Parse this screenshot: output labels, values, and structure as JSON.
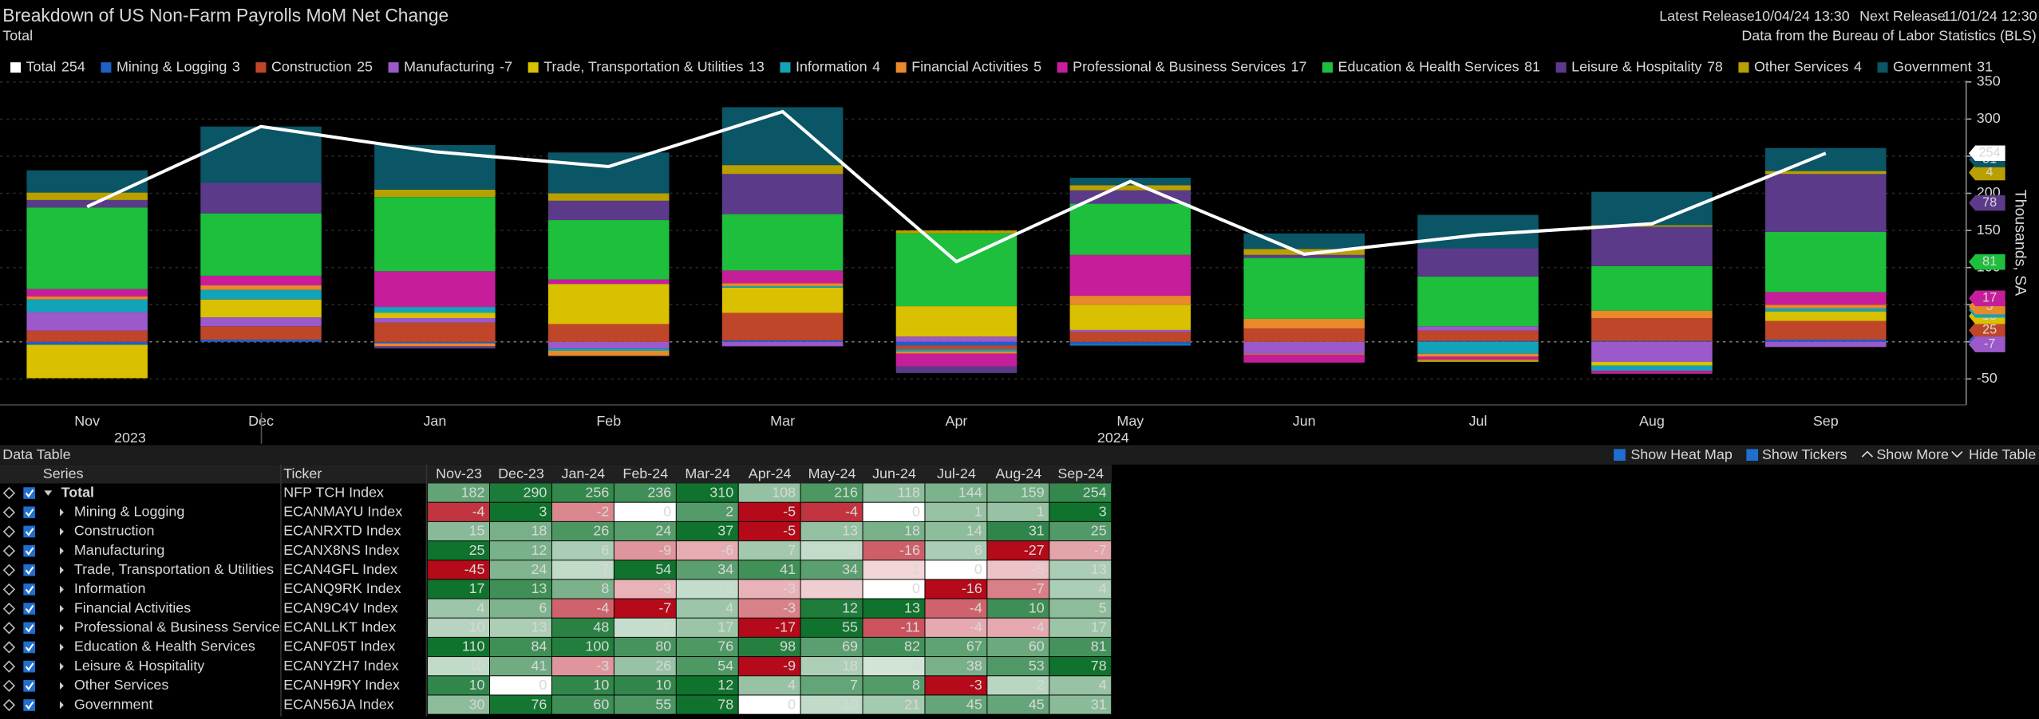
{
  "header": {
    "title": "Breakdown of US Non-Farm Payrolls MoM Net Change",
    "subtitle": "Total",
    "latest_release_label": "Latest Release",
    "latest_release": "10/04/24 13:30",
    "next_release_label": "Next Release",
    "next_release": "11/01/24 12:30",
    "source": "Data from the Bureau of Labor Statistics (BLS)"
  },
  "chart_data": {
    "type": "bar",
    "stacked": true,
    "categories": [
      "Nov-23",
      "Dec-23",
      "Jan-24",
      "Feb-24",
      "Mar-24",
      "Apr-24",
      "May-24",
      "Jun-24",
      "Jul-24",
      "Aug-24",
      "Sep-24"
    ],
    "x_labels": [
      "Nov",
      "Dec",
      "Jan",
      "Feb",
      "Mar",
      "Apr",
      "May",
      "Jun",
      "Jul",
      "Aug",
      "Sep"
    ],
    "year_labels": [
      "2023",
      "2024"
    ],
    "y_axis_label": "Thousands, SA",
    "ylim": [
      -85,
      352
    ],
    "yticks": [
      -50,
      0,
      50,
      100,
      150,
      200,
      250,
      300,
      350
    ],
    "grid": true,
    "legend": "top",
    "series": [
      {
        "name": "Total",
        "ticker": "NFP TCH Index",
        "type": "line",
        "color": "#ffffff",
        "values": [
          182,
          290,
          256,
          236,
          310,
          108,
          216,
          118,
          144,
          159,
          254
        ]
      },
      {
        "name": "Mining & Logging",
        "ticker": "ECANMAYU Index",
        "color": "#1f5fc8",
        "values": [
          -4,
          3,
          -2,
          0,
          2,
          -5,
          -4,
          0,
          1,
          1,
          3
        ]
      },
      {
        "name": "Construction",
        "ticker": "ECANRXTD Index",
        "color": "#c0462a",
        "values": [
          15,
          18,
          26,
          24,
          37,
          -5,
          13,
          18,
          14,
          31,
          25
        ]
      },
      {
        "name": "Manufacturing",
        "ticker": "ECANX8NS Index",
        "color": "#9b59c9",
        "values": [
          25,
          12,
          6,
          -9,
          -6,
          7,
          3,
          -16,
          6,
          -27,
          -7
        ]
      },
      {
        "name": "Trade, Transportation & Utilities",
        "ticker": "ECAN4GFL Index",
        "color": "#d9c000",
        "values": [
          -45,
          24,
          7,
          54,
          34,
          41,
          34,
          -1,
          0,
          -5,
          13
        ]
      },
      {
        "name": "Information",
        "ticker": "ECANQ9RK Index",
        "color": "#13a3b8",
        "values": [
          17,
          13,
          8,
          -3,
          2,
          -3,
          -1,
          0,
          -16,
          -7,
          4
        ]
      },
      {
        "name": "Financial Activities",
        "ticker": "ECAN9C4V Index",
        "color": "#e8892a",
        "values": [
          4,
          6,
          -4,
          -7,
          4,
          -3,
          12,
          13,
          -4,
          10,
          5
        ]
      },
      {
        "name": "Professional & Business Services",
        "ticker": "ECANLLKT Index",
        "color": "#c61e9a",
        "values": [
          10,
          13,
          48,
          6,
          17,
          -17,
          55,
          -11,
          -4,
          -4,
          17
        ]
      },
      {
        "name": "Education & Health Services",
        "ticker": "ECANF05T Index",
        "color": "#1dbf3c",
        "values": [
          110,
          84,
          100,
          80,
          76,
          98,
          69,
          82,
          67,
          60,
          81
        ]
      },
      {
        "name": "Leisure & Hospitality",
        "ticker": "ECANYZH7 Index",
        "color": "#5c3a8a",
        "values": [
          10,
          41,
          -3,
          26,
          54,
          -9,
          18,
          4,
          38,
          53,
          78
        ]
      },
      {
        "name": "Other Services",
        "ticker": "ECANH9RY Index",
        "color": "#b8a000",
        "values": [
          10,
          0,
          10,
          10,
          12,
          4,
          7,
          8,
          -3,
          2,
          4
        ]
      },
      {
        "name": "Government",
        "ticker": "ECAN56JA Index",
        "color": "#0a5566",
        "values": [
          30,
          76,
          60,
          55,
          78,
          0,
          10,
          21,
          45,
          45,
          31
        ]
      }
    ]
  },
  "table": {
    "title": "Data Table",
    "columns": [
      "Series",
      "Ticker"
    ],
    "toolbar": [
      "Show Heat Map",
      "Show Tickers",
      "Show More",
      "Hide Table"
    ],
    "heat_map": true,
    "show_tickers": true
  }
}
